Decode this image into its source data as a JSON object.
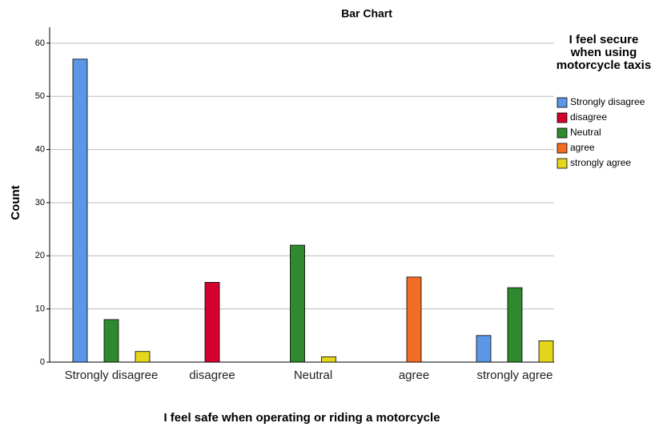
{
  "chart_data": {
    "type": "bar",
    "title": "Bar Chart",
    "x_label": "I feel safe when operating or riding a motorcycle",
    "y_label": "Count",
    "legend_title": "I feel secure when using motorcycle taxis",
    "categories": [
      "Strongly disagree",
      "disagree",
      "Neutral",
      "agree",
      "strongly agree"
    ],
    "series": [
      {
        "name": "Strongly disagree",
        "color": "#5b97e6",
        "values": [
          57,
          null,
          null,
          null,
          5
        ]
      },
      {
        "name": "disagree",
        "color": "#d4002d",
        "values": [
          null,
          15,
          null,
          null,
          null
        ]
      },
      {
        "name": "Neutral",
        "color": "#2f8a2f",
        "values": [
          8,
          null,
          22,
          null,
          14
        ]
      },
      {
        "name": "agree",
        "color": "#f36c24",
        "values": [
          null,
          null,
          null,
          16,
          null
        ]
      },
      {
        "name": "strongly agree",
        "color": "#e3d61c",
        "values": [
          2,
          null,
          1,
          null,
          4
        ]
      }
    ],
    "ylim": [
      0,
      63
    ],
    "yticks": [
      0,
      10,
      20,
      30,
      40,
      50,
      60
    ],
    "grid": true,
    "legend": "right"
  }
}
